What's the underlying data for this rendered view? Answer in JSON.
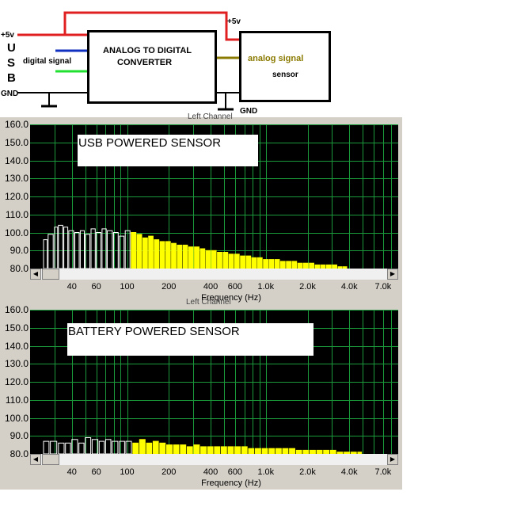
{
  "diagram": {
    "usb_letters": [
      "U",
      "S",
      "B"
    ],
    "plus5v_left": "+5v",
    "gnd_left": "GND",
    "digital_signal": "digital signal",
    "adc_line1": "ANALOG TO DIGITAL",
    "adc_line2": "CONVERTER",
    "plus5v_top": "+5v",
    "analog_signal": "analog signal",
    "sensor": "sensor",
    "gnd_right": "GND",
    "colors": {
      "power": "#e02020",
      "digital_blue": "#1030c0",
      "digital_green": "#20e030",
      "analog": "#8a7a00",
      "ground": "#000000"
    }
  },
  "charts": [
    {
      "header_text": "Left Channel",
      "label": "USB POWERED SENSOR",
      "xlabel": "Frequency (Hz)"
    },
    {
      "header_text": "Left Channel",
      "label": "BATTERY POWERED SENSOR",
      "xlabel": "Frequency (Hz)"
    }
  ],
  "chart_data": [
    {
      "type": "bar",
      "title": "USB POWERED SENSOR",
      "xlabel": "Frequency (Hz)",
      "ylabel": "",
      "x_scale": "log",
      "xlim": [
        20,
        9000
      ],
      "ylim": [
        80,
        160
      ],
      "y_ticks": [
        "160.0",
        "150.0",
        "140.0",
        "130.0",
        "120.0",
        "110.0",
        "100.0",
        "90.0",
        "80.0"
      ],
      "x_ticks": [
        {
          "value": 40,
          "label": "40"
        },
        {
          "value": 60,
          "label": "60"
        },
        {
          "value": 100,
          "label": "100"
        },
        {
          "value": 200,
          "label": "200"
        },
        {
          "value": 400,
          "label": "400"
        },
        {
          "value": 600,
          "label": "600"
        },
        {
          "value": 1000,
          "label": "1.0k"
        },
        {
          "value": 2000,
          "label": "2.0k"
        },
        {
          "value": 4000,
          "label": "4.0k"
        },
        {
          "value": 7000,
          "label": "7.0k"
        }
      ],
      "grid": true,
      "bar_color": "#ffff00",
      "series": [
        {
          "x": [
            25,
            27,
            30,
            32,
            35,
            38,
            42,
            46,
            50,
            55,
            60,
            66,
            72,
            80,
            88,
            97,
            107,
            118,
            130,
            143,
            157,
            173,
            190,
            209,
            230,
            253,
            278,
            306,
            337,
            370,
            407,
            448,
            493,
            542,
            596,
            656,
            721,
            793,
            873,
            960,
            1056,
            1162,
            1278,
            1406,
            1546,
            1701,
            1871,
            2058,
            2264,
            2490,
            2739,
            3013,
            3314,
            3600
          ],
          "values": [
            96,
            99,
            103,
            104,
            103,
            101,
            100,
            101,
            99,
            102,
            100,
            102,
            101,
            100,
            98,
            101,
            100,
            99,
            97,
            98,
            96,
            95,
            95,
            94,
            93,
            93,
            92,
            92,
            91,
            90,
            90,
            89,
            89,
            88,
            88,
            87,
            87,
            86,
            86,
            85,
            85,
            85,
            84,
            84,
            84,
            83,
            83,
            83,
            82,
            82,
            82,
            82,
            81,
            81
          ]
        }
      ]
    },
    {
      "type": "bar",
      "title": "BATTERY POWERED SENSOR",
      "xlabel": "Frequency (Hz)",
      "ylabel": "",
      "x_scale": "log",
      "xlim": [
        20,
        9000
      ],
      "ylim": [
        80,
        160
      ],
      "y_ticks": [
        "160.0",
        "150.0",
        "140.0",
        "130.0",
        "120.0",
        "110.0",
        "100.0",
        "90.0",
        "80.0"
      ],
      "x_ticks": [
        {
          "value": 40,
          "label": "40"
        },
        {
          "value": 60,
          "label": "60"
        },
        {
          "value": 100,
          "label": "100"
        },
        {
          "value": 200,
          "label": "200"
        },
        {
          "value": 400,
          "label": "400"
        },
        {
          "value": 600,
          "label": "600"
        },
        {
          "value": 1000,
          "label": "1.0k"
        },
        {
          "value": 2000,
          "label": "2.0k"
        },
        {
          "value": 4000,
          "label": "4.0k"
        },
        {
          "value": 7000,
          "label": "7.0k"
        }
      ],
      "grid": true,
      "bar_color": "#ffff00",
      "series": [
        {
          "x": [
            25,
            28,
            32,
            36,
            40,
            45,
            50,
            56,
            63,
            70,
            78,
            88,
            98,
            110,
            123,
            138,
            154,
            172,
            193,
            216,
            242,
            271,
            303,
            340,
            380,
            426,
            477,
            534,
            598,
            670,
            750,
            840,
            941,
            1054,
            1180,
            1322,
            1480,
            1658,
            1857,
            2080,
            2329,
            2608,
            2921,
            3271,
            3663,
            4100,
            4600
          ],
          "values": [
            87,
            87,
            86,
            86,
            88,
            86,
            89,
            88,
            87,
            88,
            87,
            87,
            87,
            86,
            88,
            86,
            87,
            86,
            85,
            85,
            85,
            84,
            85,
            84,
            84,
            84,
            84,
            84,
            84,
            84,
            83,
            83,
            83,
            83,
            83,
            83,
            83,
            82,
            82,
            82,
            82,
            82,
            82,
            81,
            81,
            81,
            81
          ]
        }
      ]
    }
  ]
}
